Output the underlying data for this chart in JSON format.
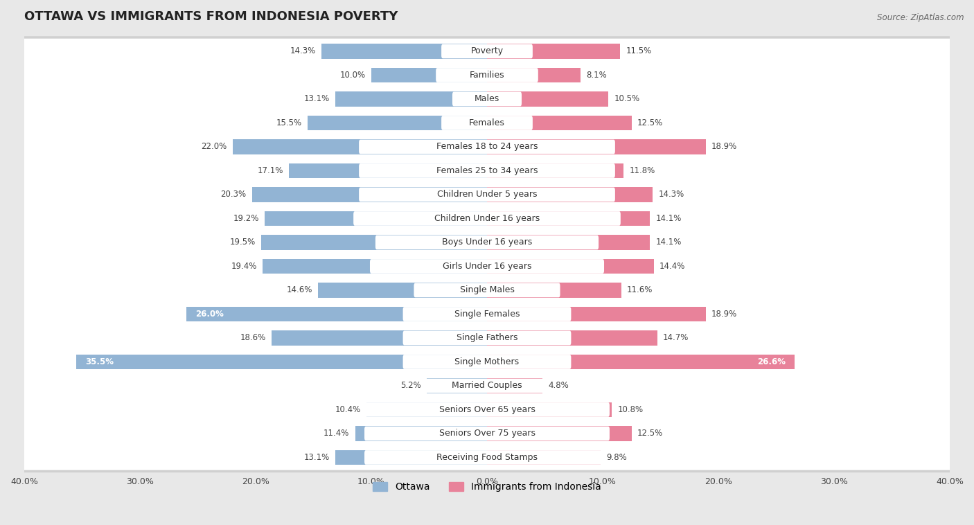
{
  "title": "OTTAWA VS IMMIGRANTS FROM INDONESIA POVERTY",
  "source": "Source: ZipAtlas.com",
  "categories": [
    "Poverty",
    "Families",
    "Males",
    "Females",
    "Females 18 to 24 years",
    "Females 25 to 34 years",
    "Children Under 5 years",
    "Children Under 16 years",
    "Boys Under 16 years",
    "Girls Under 16 years",
    "Single Males",
    "Single Females",
    "Single Fathers",
    "Single Mothers",
    "Married Couples",
    "Seniors Over 65 years",
    "Seniors Over 75 years",
    "Receiving Food Stamps"
  ],
  "ottawa_values": [
    14.3,
    10.0,
    13.1,
    15.5,
    22.0,
    17.1,
    20.3,
    19.2,
    19.5,
    19.4,
    14.6,
    26.0,
    18.6,
    35.5,
    5.2,
    10.4,
    11.4,
    13.1
  ],
  "indonesia_values": [
    11.5,
    8.1,
    10.5,
    12.5,
    18.9,
    11.8,
    14.3,
    14.1,
    14.1,
    14.4,
    11.6,
    18.9,
    14.7,
    26.6,
    4.8,
    10.8,
    12.5,
    9.8
  ],
  "ottawa_color": "#92b4d4",
  "indonesia_color": "#e8829a",
  "ottawa_label": "Ottawa",
  "indonesia_label": "Immigrants from Indonesia",
  "axis_limit": 40.0,
  "background_color": "#e8e8e8",
  "row_bg_color": "#ffffff",
  "row_bg_outer_color": "#d8d8d8",
  "title_fontsize": 13,
  "label_fontsize": 9,
  "value_fontsize": 8.5,
  "legend_fontsize": 10
}
